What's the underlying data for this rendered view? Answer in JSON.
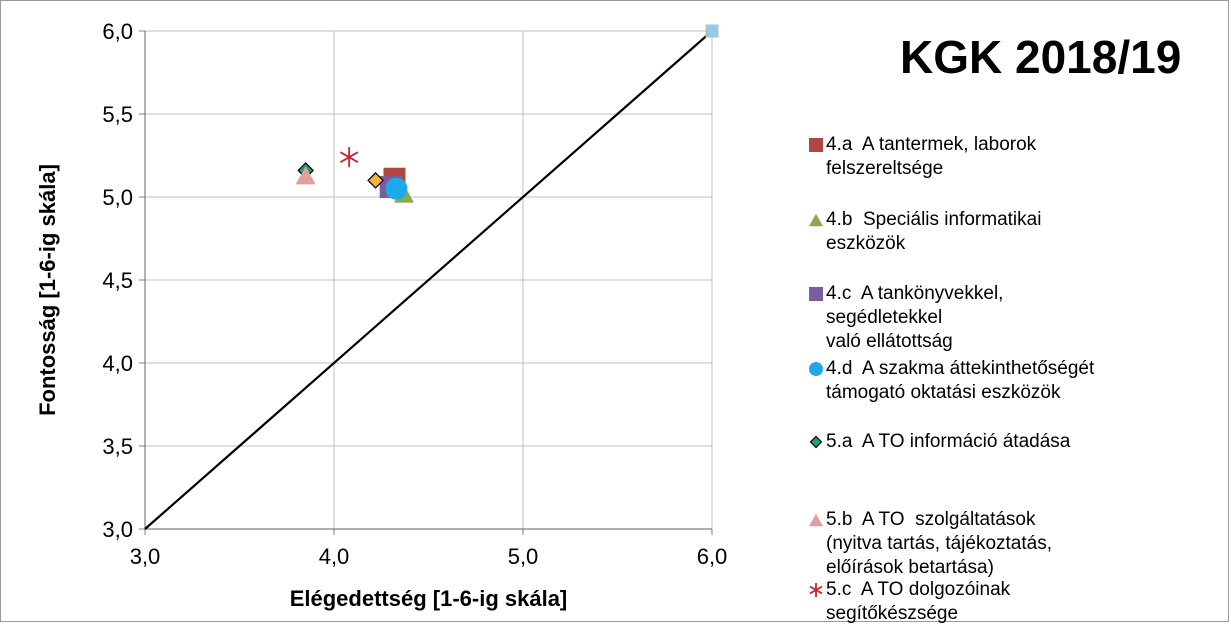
{
  "chart_data": {
    "type": "scatter",
    "title": "KGK 2018/19",
    "xlabel": "Elégedettség [1-6-ig skála]",
    "ylabel": "Fontosság [1-6-ig skála]",
    "xlim": [
      3.0,
      6.0
    ],
    "ylim": [
      3.0,
      6.0
    ],
    "x_ticks": [
      "3,0",
      "4,0",
      "5,0",
      "6,0"
    ],
    "y_ticks": [
      "3,0",
      "3,5",
      "4,0",
      "4,5",
      "5,0",
      "5,5",
      "6,0"
    ],
    "grid": true,
    "legend_position": "right",
    "reference_line": {
      "from": [
        3.0,
        3.0
      ],
      "to": [
        6.0,
        6.0
      ],
      "color": "#000000"
    },
    "series": [
      {
        "name": "4.a  A tantermek, laborok\nfelszereltsége",
        "marker": "square",
        "color": "#b0463f",
        "x": [
          4.32
        ],
        "y": [
          5.11
        ]
      },
      {
        "name": "4.b  Speciális informatikai\neszközök",
        "marker": "triangle",
        "color": "#8aa94a",
        "x": [
          4.37
        ],
        "y": [
          5.02
        ]
      },
      {
        "name": "4.c  A tankönyvekkel,\nsegédletekkel\nvaló ellátottság",
        "marker": "square",
        "color": "#7b5c9c",
        "x": [
          4.3
        ],
        "y": [
          5.06
        ]
      },
      {
        "name": "4.d  A szakma áttekinthetőségét\ntámogató oktatási eszközök",
        "marker": "circle",
        "color": "#1ea8e8",
        "x": [
          4.33
        ],
        "y": [
          5.05
        ]
      },
      {
        "name": "5.a  A TO információ átadása",
        "marker": "diamond",
        "color": "#1ea07a",
        "x": [
          3.85
        ],
        "y": [
          5.16
        ]
      },
      {
        "name": "5.b  A TO  szolgáltatások\n(nyitva tartás, tájékoztatás,\nelőírások betartása)",
        "marker": "triangle",
        "color": "#e0a0a0",
        "x": [
          3.85
        ],
        "y": [
          5.13
        ]
      },
      {
        "name": "5.c  A TO dolgozóinak\nsegítőkészsége",
        "marker": "star",
        "color": "#c0272d",
        "x": [
          4.08
        ],
        "y": [
          5.24
        ]
      },
      {
        "name": "",
        "marker": "diamond",
        "color": "#f2b53a",
        "x": [
          4.22
        ],
        "y": [
          5.1
        ]
      },
      {
        "name": "",
        "marker": "square",
        "color": "#9fc5e0",
        "x": [
          6.0
        ],
        "y": [
          6.0
        ]
      }
    ]
  }
}
